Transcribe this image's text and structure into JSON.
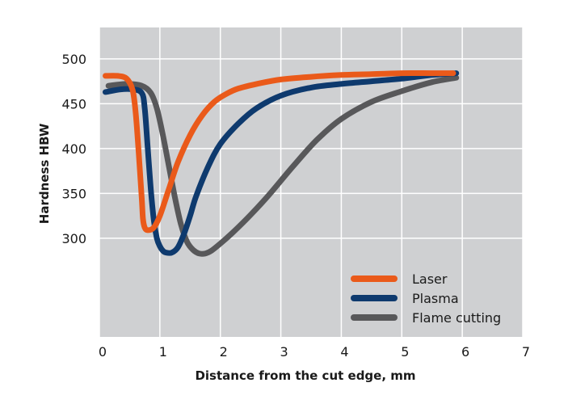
{
  "chart_data": {
    "type": "line",
    "title": "",
    "xlabel": "Distance from the cut edge, mm",
    "ylabel": "Hardness HBW",
    "xlim": [
      0,
      7
    ],
    "ylim": [
      190,
      535
    ],
    "xticks": [
      "0",
      "1",
      "2",
      "3",
      "4",
      "5",
      "6",
      "7"
    ],
    "yticks": [
      "300",
      "350",
      "400",
      "450",
      "500"
    ],
    "grid": true,
    "legend_position": "bottom-right",
    "background": "#cfd0d2",
    "series": [
      {
        "name": "Laser",
        "color": "#ea5a1a",
        "x": [
          0.1,
          0.3,
          0.45,
          0.55,
          0.6,
          0.65,
          0.7,
          0.72,
          0.75,
          0.8,
          0.9,
          1.0,
          1.15,
          1.3,
          1.5,
          1.7,
          1.9,
          2.1,
          2.3,
          2.6,
          3.0,
          3.5,
          4.0,
          4.5,
          5.0,
          5.5,
          5.85
        ],
        "y": [
          481,
          481,
          478,
          465,
          440,
          395,
          345,
          322,
          312,
          309,
          312,
          325,
          355,
          385,
          415,
          437,
          452,
          461,
          467,
          472,
          477,
          480,
          482,
          483,
          484,
          484,
          484
        ]
      },
      {
        "name": "Plasma",
        "color": "#0e3a6e",
        "x": [
          0.1,
          0.35,
          0.55,
          0.7,
          0.75,
          0.8,
          0.85,
          0.9,
          0.95,
          1.0,
          1.05,
          1.1,
          1.2,
          1.3,
          1.4,
          1.5,
          1.6,
          1.8,
          2.0,
          2.3,
          2.6,
          3.0,
          3.5,
          4.0,
          4.5,
          5.0,
          5.5,
          5.9
        ],
        "y": [
          463,
          466,
          466,
          462,
          445,
          400,
          355,
          320,
          300,
          291,
          286,
          284,
          284,
          290,
          305,
          325,
          347,
          380,
          405,
          428,
          445,
          459,
          468,
          472,
          475,
          478,
          482,
          484
        ]
      },
      {
        "name": "Flame cutting",
        "color": "#58585a",
        "x": [
          0.15,
          0.45,
          0.7,
          0.85,
          0.95,
          1.05,
          1.15,
          1.25,
          1.35,
          1.45,
          1.55,
          1.65,
          1.75,
          1.85,
          2.0,
          2.2,
          2.5,
          2.8,
          3.2,
          3.6,
          4.0,
          4.5,
          5.0,
          5.5,
          5.9
        ],
        "y": [
          470,
          472,
          470,
          462,
          445,
          415,
          380,
          345,
          315,
          296,
          287,
          283,
          283,
          286,
          294,
          306,
          326,
          348,
          380,
          410,
          433,
          452,
          464,
          474,
          479
        ]
      }
    ]
  }
}
